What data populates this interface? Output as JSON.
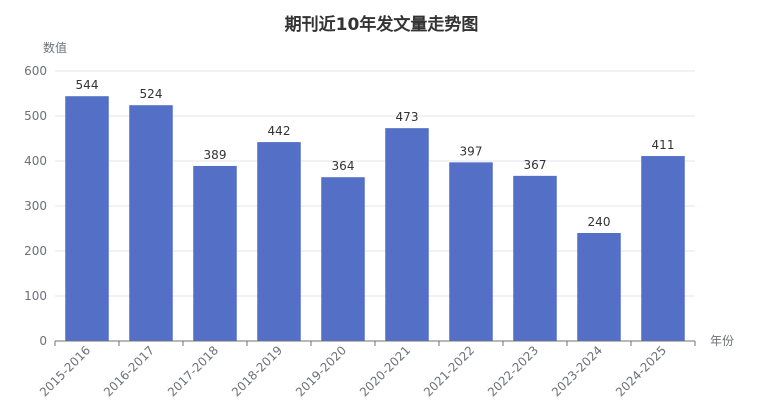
{
  "chart_data": {
    "type": "bar",
    "title": "期刊近10年发文量走势图",
    "xlabel": "年份",
    "ylabel": "数值",
    "categories": [
      "2015-2016",
      "2016-2017",
      "2017-2018",
      "2018-2019",
      "2019-2020",
      "2020-2021",
      "2021-2022",
      "2022-2023",
      "2023-2024",
      "2024-2025"
    ],
    "values": [
      544,
      524,
      389,
      442,
      364,
      473,
      397,
      367,
      240,
      411
    ],
    "ylim": [
      0,
      600
    ],
    "yticks": [
      0,
      100,
      200,
      300,
      400,
      500,
      600
    ],
    "grid": true,
    "data_labels": true,
    "x_tick_rotation": "45deg",
    "colors": {
      "bar": "#5470c6",
      "grid": "#e0e6f1",
      "axis": "#6e7079",
      "text": "#6e7079",
      "title": "#333333"
    }
  }
}
